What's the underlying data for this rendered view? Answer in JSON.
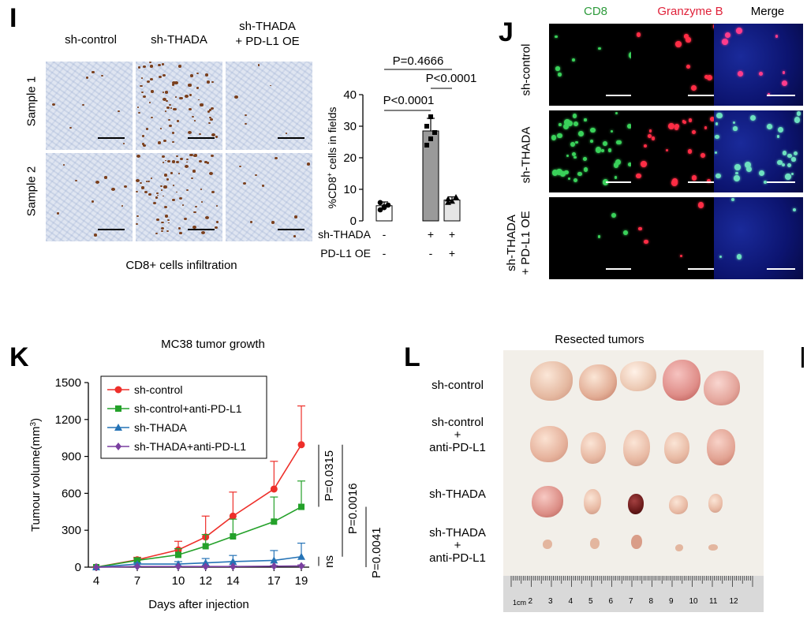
{
  "panel_i": {
    "label": "I",
    "col_headers": [
      "sh-control",
      "sh-THADA",
      "sh-THADA\n+ PD-L1 OE"
    ],
    "row_labels": [
      "Sample 1",
      "Sample 2"
    ],
    "caption": "CD8+ cells infiltration"
  },
  "panel_i_chart": {
    "p_values": [
      "P=0.4666",
      "P<0.0001",
      "P<0.0001"
    ],
    "row1_label": "sh-THADA",
    "row1_signs": [
      "-",
      "+",
      "+"
    ],
    "row2_label": "PD-L1 OE",
    "row2_signs": [
      "-",
      "-",
      "+"
    ],
    "ylabel_main": "%CD8",
    "ylabel_sup": "+",
    "ylabel_tail": " cells in fields"
  },
  "panel_j": {
    "label": "J",
    "col_headers": [
      "CD8",
      "Granzyme B",
      "Merge"
    ],
    "col_colors": [
      "#2e9b3c",
      "#e0223a",
      "#000000"
    ],
    "row_labels": [
      "sh-control",
      "sh-THADA",
      "sh-THADA\n+ PD-L1 OE"
    ]
  },
  "panel_k": {
    "label": "K",
    "title": "MC38 tumor growth",
    "xlabel": "Days after injection",
    "ylabel": "Tumour volume(mm",
    "ylabel_sup": "3",
    "ylabel_end": ")",
    "p_values": [
      "P=0.0315",
      "P=0.0016",
      "P=0.0041",
      "ns"
    ]
  },
  "panel_l": {
    "label": "L",
    "title": "Resected tumors",
    "row_labels": [
      "sh-control",
      "sh-control\n+\nanti-PD-L1",
      "sh-THADA",
      "sh-THADA\n+\nanti-PD-L1"
    ],
    "ruler_unit": "1cm",
    "ruler_numbers": [
      "2",
      "3",
      "4",
      "5",
      "6",
      "7",
      "8",
      "9",
      "10",
      "11",
      "12"
    ]
  },
  "chart_data": [
    {
      "type": "bar",
      "categories": [
        "sh-control",
        "sh-THADA",
        "sh-THADA + PD-L1 OE"
      ],
      "values": [
        4.8,
        28.5,
        6.6
      ],
      "errors": [
        1.2,
        4.0,
        1.0
      ],
      "points": [
        [
          3.5,
          4.2,
          5.0,
          5.8,
          4.5
        ],
        [
          24,
          26,
          28,
          30,
          33
        ],
        [
          5.8,
          6.2,
          7.5,
          6.9
        ]
      ],
      "bar_colors": [
        "#ffffff",
        "#9a9a9a",
        "#e6e6e6"
      ],
      "ylabel": "%CD8+ cells in fields",
      "ylim": [
        0,
        40
      ],
      "yticks": [
        0,
        10,
        20,
        30,
        40
      ]
    },
    {
      "type": "line",
      "title": "MC38 tumor growth",
      "xlabel": "Days after injection",
      "ylabel": "Tumour volume(mm3)",
      "x": [
        4,
        7,
        10,
        12,
        14,
        17,
        19
      ],
      "ylim": [
        0,
        1500
      ],
      "yticks": [
        0,
        300,
        600,
        900,
        1200,
        1500
      ],
      "legend_position": "top-left",
      "series": [
        {
          "name": "sh-control",
          "color": "#ee2f2a",
          "marker": "circle",
          "values": [
            0,
            60,
            140,
            245,
            415,
            635,
            995
          ],
          "errors": [
            0,
            20,
            70,
            170,
            195,
            225,
            315
          ]
        },
        {
          "name": "sh-control+anti-PD-L1",
          "color": "#24a12a",
          "marker": "square",
          "values": [
            0,
            55,
            100,
            170,
            250,
            370,
            490
          ],
          "errors": [
            0,
            15,
            50,
            95,
            140,
            200,
            210
          ]
        },
        {
          "name": "sh-THADA",
          "color": "#2573b6",
          "marker": "triangle",
          "values": [
            0,
            25,
            25,
            35,
            45,
            55,
            85
          ],
          "errors": [
            0,
            10,
            20,
            35,
            50,
            80,
            110
          ]
        },
        {
          "name": "sh-THADA+anti-PD-L1",
          "color": "#7a3fa0",
          "marker": "diamond",
          "values": [
            0,
            5,
            5,
            5,
            5,
            8,
            10
          ],
          "errors": [
            0,
            3,
            3,
            5,
            5,
            5,
            8
          ]
        }
      ]
    }
  ]
}
